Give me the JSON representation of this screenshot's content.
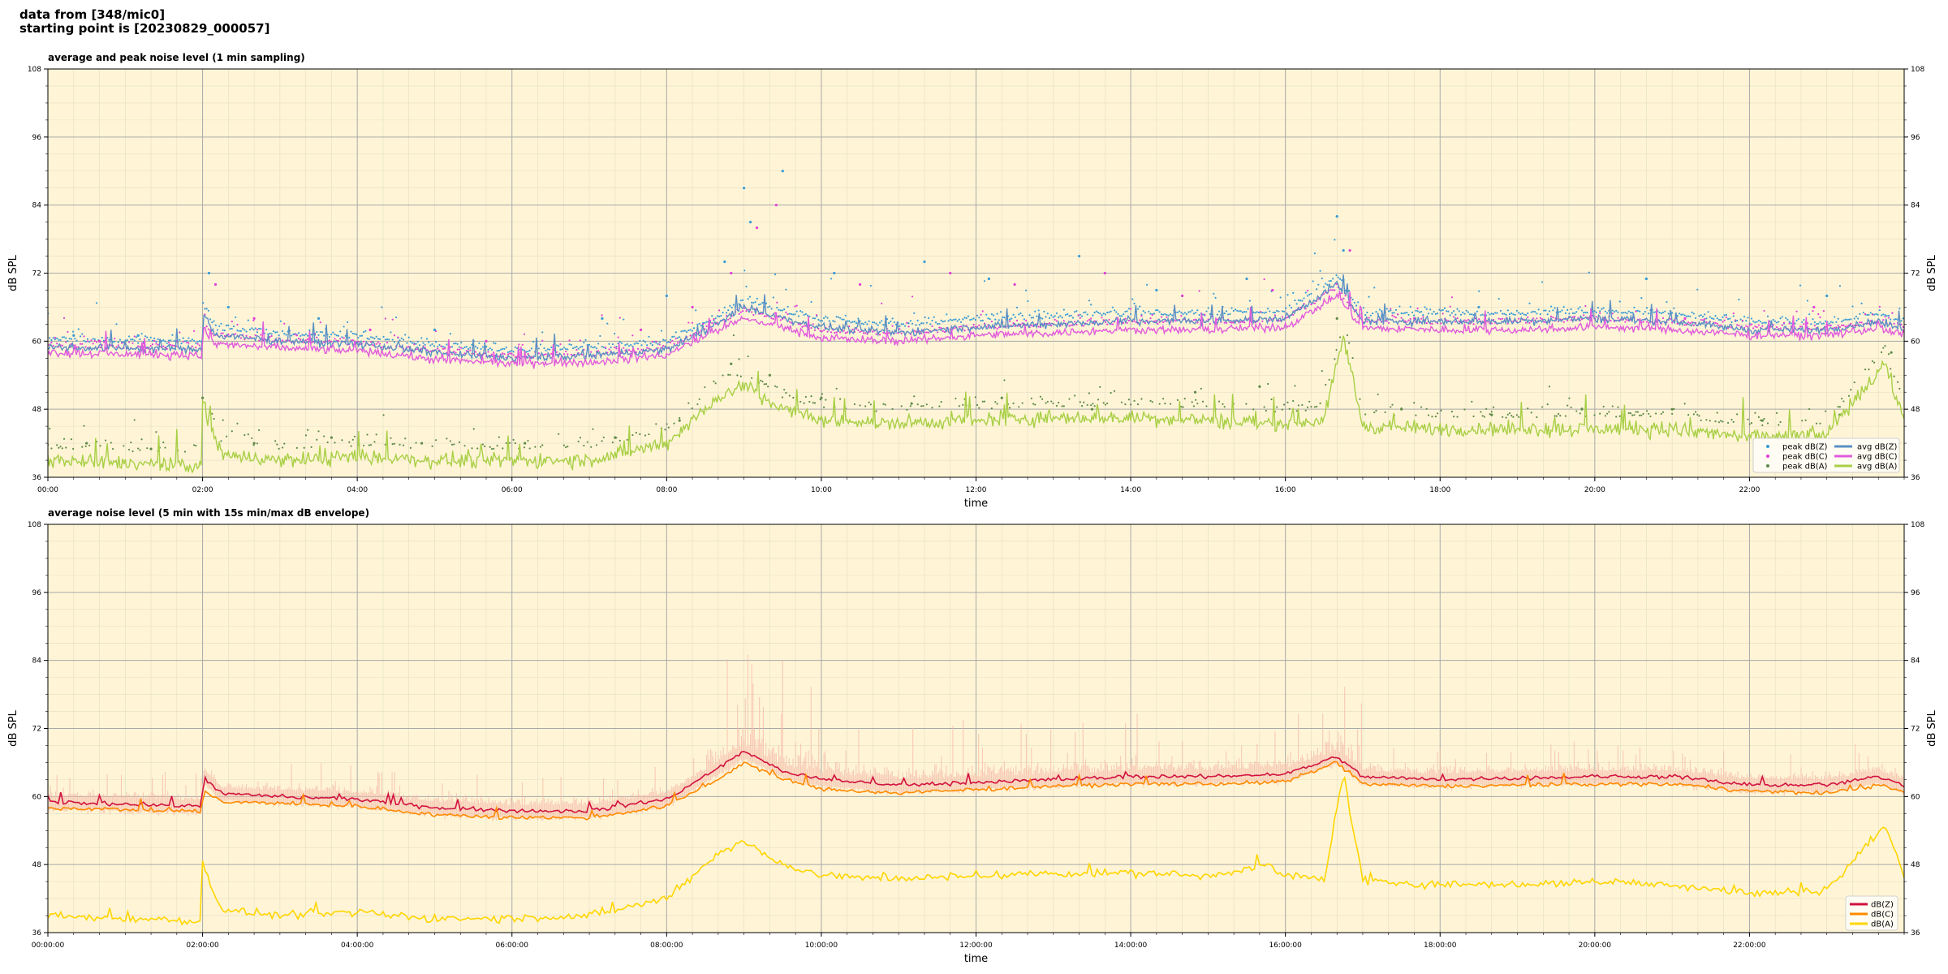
{
  "header": {
    "line1": "data from [348/mic0]",
    "line2": "starting point is [20230829_000057]"
  },
  "colors": {
    "plot_bg": "#fff5d6",
    "zA": "#5b8fc4",
    "zP": "#3a9bd5",
    "cA": "#e05adc",
    "cP": "#e03ed6",
    "aA": "#a8cf45",
    "aP": "#5f8a4a",
    "dbZ": "#d1123f",
    "dbC": "#ff8a00",
    "dbA": "#ffd500",
    "env": "#f4b9a8"
  },
  "chart_data": [
    {
      "type": "line",
      "title": "average and peak noise level (1 min sampling)",
      "xlabel": "time",
      "ylabel": "dB SPL",
      "ylim": [
        36,
        108
      ],
      "yticks": [
        36,
        48,
        60,
        72,
        84,
        96,
        108
      ],
      "xlim": [
        "00:00",
        "24:00"
      ],
      "xticks": [
        "00:00",
        "02:00",
        "04:00",
        "06:00",
        "08:00",
        "10:00",
        "12:00",
        "14:00",
        "16:00",
        "18:00",
        "20:00",
        "22:00"
      ],
      "grid": true,
      "legend_position": "bottom-right",
      "legend": [
        "peak dB(Z)",
        "peak dB(C)",
        "peak dB(A)",
        "avg dB(Z)",
        "avg dB(C)",
        "avg dB(A)"
      ],
      "series": [
        {
          "name": "avg dB(Z)",
          "kind": "line",
          "x": [
            "00:00",
            "01:00",
            "01:59",
            "02:01",
            "02:10",
            "03:00",
            "04:00",
            "05:00",
            "06:00",
            "07:00",
            "08:00",
            "08:40",
            "09:00",
            "09:30",
            "10:00",
            "11:00",
            "12:00",
            "13:00",
            "14:00",
            "15:00",
            "16:00",
            "16:40",
            "17:00",
            "18:00",
            "19:00",
            "20:00",
            "21:00",
            "22:00",
            "23:00",
            "23:40",
            "24:00"
          ],
          "values": [
            59,
            58.7,
            58.5,
            65,
            61,
            60,
            59.5,
            58,
            57,
            57.5,
            58.5,
            63,
            66,
            64,
            62.5,
            61.5,
            62.5,
            63,
            63.5,
            63.5,
            64,
            70,
            63.5,
            63.5,
            63.5,
            64,
            63.5,
            62,
            62,
            63.5,
            62
          ]
        },
        {
          "name": "avg dB(C)",
          "kind": "line",
          "x": [
            "00:00",
            "01:00",
            "01:59",
            "02:01",
            "02:10",
            "03:00",
            "04:00",
            "05:00",
            "06:00",
            "07:00",
            "08:00",
            "08:40",
            "09:00",
            "09:30",
            "10:00",
            "11:00",
            "12:00",
            "13:00",
            "14:00",
            "15:00",
            "16:00",
            "16:40",
            "17:00",
            "18:00",
            "19:00",
            "20:00",
            "21:00",
            "22:00",
            "23:00",
            "23:40",
            "24:00"
          ],
          "values": [
            58,
            57.7,
            57.5,
            62,
            59.5,
            58.8,
            58.3,
            56.8,
            56,
            56.3,
            57.5,
            62,
            64,
            62.5,
            60.5,
            60,
            61,
            61.5,
            62,
            62,
            62.5,
            68,
            62.3,
            62,
            62,
            62.5,
            62,
            61,
            61,
            62.3,
            61
          ]
        },
        {
          "name": "avg dB(A)",
          "kind": "line",
          "x": [
            "00:00",
            "01:00",
            "01:59",
            "02:00",
            "02:15",
            "03:00",
            "04:00",
            "05:00",
            "06:00",
            "07:00",
            "08:00",
            "08:40",
            "09:00",
            "09:30",
            "10:00",
            "11:00",
            "12:00",
            "13:00",
            "14:00",
            "15:00",
            "16:00",
            "16:30",
            "16:45",
            "17:00",
            "18:00",
            "19:00",
            "20:00",
            "21:00",
            "22:00",
            "23:00",
            "23:45",
            "24:00"
          ],
          "values": [
            39,
            38.5,
            38,
            49,
            40,
            39,
            39.5,
            39,
            39,
            39,
            42,
            50,
            52,
            48,
            46,
            45.5,
            46,
            46.5,
            46.5,
            46,
            45.5,
            46,
            61,
            45,
            44.5,
            44.5,
            44.5,
            44.5,
            43,
            43.5,
            56,
            46
          ]
        },
        {
          "name": "peak dB(Z)",
          "kind": "scatter",
          "x": [
            "00:20",
            "01:10",
            "02:05",
            "02:20",
            "03:30",
            "05:00",
            "07:10",
            "08:00",
            "08:45",
            "09:00",
            "09:05",
            "09:30",
            "10:10",
            "11:20",
            "12:10",
            "13:20",
            "14:20",
            "15:30",
            "16:40",
            "16:45",
            "18:30",
            "20:40",
            "23:00"
          ],
          "values": [
            61,
            61,
            72,
            66,
            64,
            62,
            64,
            68,
            74,
            87,
            81,
            90,
            72,
            74,
            71,
            75,
            69,
            71,
            82,
            76,
            66,
            71,
            68
          ]
        },
        {
          "name": "peak dB(C)",
          "kind": "scatter",
          "x": [
            "00:40",
            "01:40",
            "02:10",
            "02:40",
            "04:10",
            "05:40",
            "07:40",
            "08:20",
            "08:50",
            "09:10",
            "09:25",
            "10:30",
            "11:40",
            "12:30",
            "13:40",
            "14:40",
            "15:50",
            "16:50",
            "17:40",
            "19:30",
            "21:10",
            "22:50"
          ],
          "values": [
            60,
            60,
            70,
            64,
            62,
            60,
            62,
            66,
            72,
            80,
            84,
            70,
            72,
            70,
            72,
            68,
            69,
            76,
            64,
            64,
            64,
            66
          ]
        },
        {
          "name": "peak dB(A)",
          "kind": "scatter",
          "x": [
            "00:30",
            "01:20",
            "02:00",
            "02:40",
            "03:40",
            "04:50",
            "06:10",
            "07:20",
            "08:10",
            "08:50",
            "09:20",
            "10:00",
            "11:10",
            "12:20",
            "13:30",
            "14:50",
            "15:40",
            "16:40",
            "17:30",
            "18:40",
            "19:50",
            "21:00",
            "22:10",
            "23:10",
            "23:50"
          ],
          "values": [
            42,
            41,
            50,
            42,
            43,
            42,
            42,
            43,
            46,
            56,
            54,
            50,
            49,
            50,
            48,
            51,
            52,
            64,
            48,
            47,
            48,
            48,
            46,
            47,
            58
          ]
        }
      ]
    },
    {
      "type": "line",
      "title": "average noise level (5 min with 15s min/max dB envelope)",
      "xlabel": "time",
      "ylabel": "dB SPL",
      "ylim": [
        36,
        108
      ],
      "yticks": [
        36,
        48,
        60,
        72,
        84,
        96,
        108
      ],
      "xlim": [
        "00:00:00",
        "24:00:00"
      ],
      "xticks": [
        "00:00:00",
        "02:00:00",
        "04:00:00",
        "06:00:00",
        "08:00:00",
        "10:00:00",
        "12:00:00",
        "14:00:00",
        "16:00:00",
        "18:00:00",
        "20:00:00",
        "22:00:00"
      ],
      "grid": true,
      "legend_position": "bottom-right",
      "legend": [
        "dB(Z)",
        "dB(C)",
        "dB(A)"
      ],
      "series": [
        {
          "name": "dB(Z)",
          "x": [
            "00:00",
            "01:00",
            "01:59",
            "02:01",
            "02:15",
            "03:00",
            "04:00",
            "05:00",
            "06:00",
            "07:00",
            "08:00",
            "08:40",
            "09:00",
            "09:30",
            "10:00",
            "11:00",
            "12:00",
            "13:00",
            "14:00",
            "15:00",
            "16:00",
            "16:40",
            "17:00",
            "18:00",
            "19:00",
            "20:00",
            "21:00",
            "22:00",
            "23:00",
            "23:40",
            "24:00"
          ],
          "values": [
            59,
            58.7,
            58.3,
            63.5,
            60.5,
            60,
            59.5,
            58,
            57.5,
            57.5,
            59.5,
            65,
            68,
            64.5,
            63,
            62,
            62.5,
            63,
            63.5,
            63.5,
            64,
            67,
            63.5,
            63,
            63.3,
            63.5,
            63.5,
            62,
            62,
            63.5,
            62
          ]
        },
        {
          "name": "dB(C)",
          "x": [
            "00:00",
            "01:00",
            "01:59",
            "02:01",
            "02:15",
            "03:00",
            "04:00",
            "05:00",
            "06:00",
            "07:00",
            "08:00",
            "08:40",
            "09:00",
            "09:30",
            "10:00",
            "11:00",
            "12:00",
            "13:00",
            "14:00",
            "15:00",
            "16:00",
            "16:40",
            "17:00",
            "18:00",
            "19:00",
            "20:00",
            "21:00",
            "22:00",
            "23:00",
            "23:40",
            "24:00"
          ],
          "values": [
            58,
            57.7,
            57.4,
            61,
            59,
            58.8,
            58.3,
            56.8,
            56.3,
            56.3,
            58.3,
            63,
            66,
            63,
            61.3,
            60.6,
            61.2,
            61.8,
            62.2,
            62.2,
            62.6,
            66,
            62.2,
            61.8,
            62,
            62.2,
            62.2,
            61,
            60.6,
            62,
            60.7
          ]
        },
        {
          "name": "dB(A)",
          "x": [
            "00:00",
            "01:00",
            "01:59",
            "02:00",
            "02:15",
            "03:00",
            "04:00",
            "05:00",
            "06:00",
            "07:00",
            "08:00",
            "08:40",
            "09:00",
            "09:30",
            "10:00",
            "11:00",
            "12:00",
            "13:00",
            "14:00",
            "15:00",
            "15:45",
            "16:00",
            "16:30",
            "16:45",
            "17:00",
            "18:00",
            "19:00",
            "20:00",
            "21:00",
            "22:00",
            "23:00",
            "23:45",
            "24:00"
          ],
          "values": [
            39,
            38.5,
            38,
            48,
            40,
            39,
            39.5,
            38.5,
            38.5,
            39,
            42,
            50,
            52,
            48,
            46,
            45.5,
            46,
            46.5,
            46.5,
            46,
            48,
            46,
            45.5,
            64,
            45,
            44.5,
            44.5,
            45,
            44.5,
            43,
            43.5,
            55,
            46
          ]
        }
      ]
    }
  ]
}
